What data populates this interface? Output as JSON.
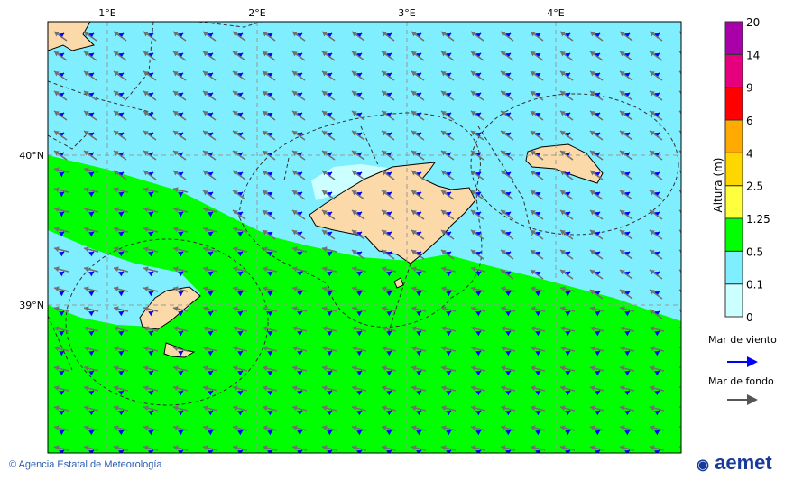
{
  "map": {
    "lon_labels": [
      "1°E",
      "2°E",
      "3°E",
      "4°E"
    ],
    "lat_labels": [
      "40°N",
      "39°N"
    ],
    "colors": {
      "sea_light": "#7fefff",
      "sea_very_light": "#ccffff",
      "green": "#00ff00",
      "land": "#fcd9a8",
      "wind_sea_arrow": "#0000ff",
      "swell_arrow": "#707070"
    }
  },
  "colorbar": {
    "title": "Altura (m)",
    "levels": [
      "0",
      "0.1",
      "0.5",
      "1.25",
      "2.5",
      "4",
      "6",
      "9",
      "14",
      "20"
    ],
    "colors": [
      "#ccffff",
      "#7fefff",
      "#00ff00",
      "#ffff40",
      "#ffd700",
      "#ffaa00",
      "#ff0000",
      "#e6007e",
      "#aa00aa"
    ]
  },
  "legend": {
    "wind_sea": "Mar de viento",
    "swell": "Mar de fondo"
  },
  "footer": {
    "copyright": "© Agencia Estatal de Meteorología",
    "logo": "aemet"
  }
}
